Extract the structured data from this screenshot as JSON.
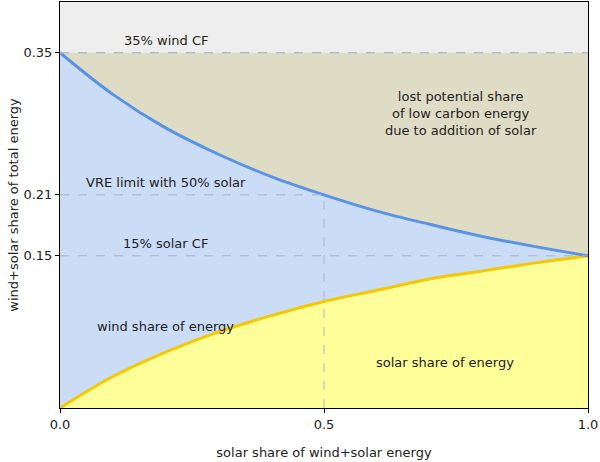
{
  "chart_data": {
    "type": "area",
    "stacked": true,
    "grid": false,
    "x": [
      0,
      0.1,
      0.2,
      0.3,
      0.4,
      0.5,
      0.6,
      0.7,
      0.8,
      0.9,
      1.0
    ],
    "series": [
      {
        "name": "solar share of energy",
        "color": "#ffff99",
        "values": [
          0,
          0.031,
          0.055,
          0.075,
          0.091,
          0.105,
          0.116,
          0.127,
          0.135,
          0.143,
          0.15
        ]
      },
      {
        "name": "wind share of energy",
        "color": "#cbdcf7",
        "values": [
          0.35,
          0.278,
          0.221,
          0.175,
          0.137,
          0.105,
          0.078,
          0.054,
          0.034,
          0.016,
          0
        ]
      },
      {
        "name": "lost potential share\nof low carbon energy\ndue to addition of solar",
        "color": "#dfdcc5",
        "line_style": "dashed",
        "values": [
          0,
          0.041,
          0.074,
          0.1,
          0.122,
          0.14,
          0.156,
          0.169,
          0.181,
          0.191,
          0.2
        ]
      }
    ],
    "xlim": [
      0,
      1
    ],
    "ylim": [
      0,
      0.4
    ],
    "xticks": [
      {
        "value": 0,
        "label": "0.0"
      },
      {
        "value": 0.5,
        "label": "0.5"
      },
      {
        "value": 1,
        "label": "1.0"
      }
    ],
    "yticks": [
      0.15,
      0.21,
      0.35
    ],
    "xlabel": "solar share of wind+solar energy",
    "ylabel": "wind+solar share of total energy",
    "annotations": [
      {
        "text": "35% wind CF",
        "y": 0.35
      },
      {
        "text": "VRE limit with 50% solar",
        "x": 0.5,
        "y": 0.21
      },
      {
        "text": "15% solar CF",
        "y": 0.15
      }
    ]
  }
}
